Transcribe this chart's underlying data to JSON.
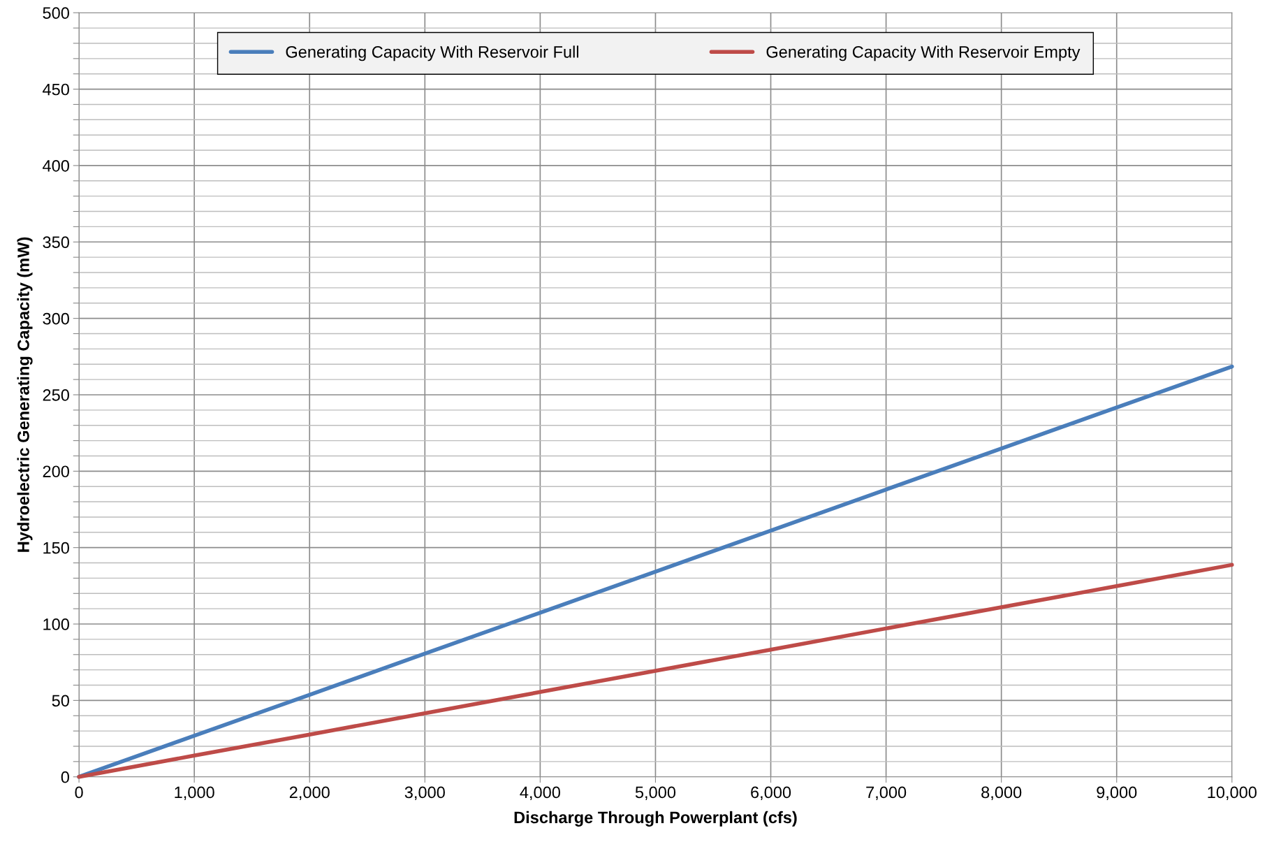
{
  "chart_data": {
    "type": "line",
    "xlabel": "Discharge Through Powerplant (cfs)",
    "ylabel": "Hydroelectric Generating Capacity (mW)",
    "series": [
      {
        "name": "Generating Capacity With Reservoir Full",
        "color": "#4a7ebb",
        "x": [
          0,
          1000,
          2000,
          3000,
          4000,
          5000,
          6000,
          7000,
          8000,
          9000,
          10000
        ],
        "values": [
          0,
          26.9,
          53.7,
          80.6,
          107.4,
          134.3,
          161.1,
          188,
          214.8,
          241.7,
          268.5
        ]
      },
      {
        "name": "Generating Capacity With Reservoir Empty",
        "color": "#be4b48",
        "x": [
          0,
          1000,
          2000,
          3000,
          4000,
          5000,
          6000,
          7000,
          8000,
          9000,
          10000
        ],
        "values": [
          0,
          13.9,
          27.7,
          41.6,
          55.5,
          69.4,
          83.2,
          97.1,
          111,
          124.8,
          138.7
        ]
      }
    ],
    "xlim": [
      0,
      10000
    ],
    "xticks": [
      0,
      {
        "value": 1000,
        "label": "1,000"
      },
      {
        "value": 2000,
        "label": "2,000"
      },
      {
        "value": 3000,
        "label": "3,000"
      },
      {
        "value": 4000,
        "label": "4,000"
      },
      {
        "value": 5000,
        "label": "5,000"
      },
      {
        "value": 6000,
        "label": "6,000"
      },
      {
        "value": 7000,
        "label": "7,000"
      },
      {
        "value": 8000,
        "label": "8,000"
      },
      {
        "value": 9000,
        "label": "9,000"
      },
      {
        "value": 10000,
        "label": "10,000"
      }
    ],
    "ylim": [
      0,
      500
    ],
    "yticks": [
      0,
      {
        "value": 10,
        "label": null
      },
      {
        "value": 20,
        "label": null
      },
      {
        "value": 30,
        "label": null
      },
      {
        "value": 40,
        "label": null
      },
      50,
      {
        "value": 60,
        "label": null
      },
      {
        "value": 70,
        "label": null
      },
      {
        "value": 80,
        "label": null
      },
      {
        "value": 90,
        "label": null
      },
      100,
      {
        "value": 110,
        "label": null
      },
      {
        "value": 120,
        "label": null
      },
      {
        "value": 130,
        "label": null
      },
      {
        "value": 140,
        "label": null
      },
      150,
      {
        "value": 160,
        "label": null
      },
      {
        "value": 170,
        "label": null
      },
      {
        "value": 180,
        "label": null
      },
      {
        "value": 190,
        "label": null
      },
      200,
      {
        "value": 210,
        "label": null
      },
      {
        "value": 220,
        "label": null
      },
      {
        "value": 230,
        "label": null
      },
      {
        "value": 240,
        "label": null
      },
      250,
      {
        "value": 260,
        "label": null
      },
      {
        "value": 270,
        "label": null
      },
      {
        "value": 280,
        "label": null
      },
      {
        "value": 290,
        "label": null
      },
      300,
      {
        "value": 310,
        "label": null
      },
      {
        "value": 320,
        "label": null
      },
      {
        "value": 330,
        "label": null
      },
      {
        "value": 340,
        "label": null
      },
      350,
      {
        "value": 360,
        "label": null
      },
      {
        "value": 370,
        "label": null
      },
      {
        "value": 380,
        "label": null
      },
      {
        "value": 390,
        "label": null
      },
      400,
      {
        "value": 410,
        "label": null
      },
      {
        "value": 420,
        "label": null
      },
      {
        "value": 430,
        "label": null
      },
      {
        "value": 440,
        "label": null
      },
      450,
      {
        "value": 460,
        "label": null
      },
      {
        "value": 470,
        "label": null
      },
      {
        "value": 480,
        "label": null
      },
      {
        "value": 490,
        "label": null
      },
      500
    ],
    "grid": true,
    "legend": "top",
    "marker": "none",
    "line_style": "solid"
  }
}
